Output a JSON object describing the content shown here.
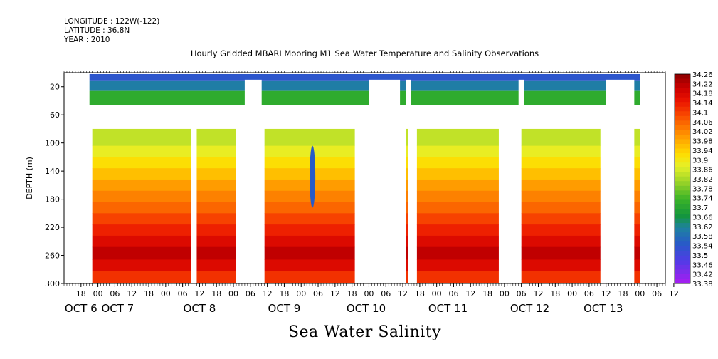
{
  "header": {
    "longitude": "LONGITUDE : 122W(-122)",
    "latitude": "LATITUDE : 36.8N",
    "year": "YEAR : 2010"
  },
  "chart_data": {
    "type": "heatmap",
    "title": "Hourly Gridded MBARI Mooring M1 Sea Water Temperature and Salinity Observations",
    "subtitle": "Sea Water Salinity",
    "ylabel": "DEPTH (m)",
    "x_range_hours": [
      -6,
      207
    ],
    "y_range": [
      0,
      300
    ],
    "y_inverted": true,
    "y_ticks": [
      20,
      60,
      100,
      140,
      180,
      220,
      260,
      300
    ],
    "x_hour_ticks": [
      "18",
      "00",
      "06",
      "12",
      "18",
      "00",
      "06",
      "12",
      "18",
      "00",
      "06",
      "12",
      "18",
      "00",
      "06",
      "12",
      "18",
      "00",
      "06",
      "12",
      "18",
      "00",
      "06",
      "12",
      "18",
      "00",
      "06",
      "12",
      "18",
      "00",
      "06",
      "12",
      "18",
      "00",
      "06",
      "12"
    ],
    "x_date_labels": [
      {
        "label": "OCT  6",
        "hour": 0
      },
      {
        "label": "OCT  7",
        "hour": 13
      },
      {
        "label": "OCT  8",
        "hour": 42
      },
      {
        "label": "OCT  9",
        "hour": 72
      },
      {
        "label": "OCT 10",
        "hour": 101
      },
      {
        "label": "OCT 11",
        "hour": 130
      },
      {
        "label": "OCT 12",
        "hour": 159
      },
      {
        "label": "OCT 13",
        "hour": 185
      }
    ],
    "colorbar": {
      "levels": [
        34.26,
        34.24,
        34.22,
        34.2,
        34.18,
        34.16,
        34.14,
        34.12,
        34.1,
        34.08,
        34.06,
        34.04,
        34.02,
        34.0,
        33.98,
        33.96,
        33.94,
        33.92,
        33.9,
        33.88,
        33.86,
        33.84,
        33.82,
        33.8,
        33.78,
        33.76,
        33.74,
        33.72,
        33.7,
        33.68,
        33.66,
        33.64,
        33.62,
        33.6,
        33.58,
        33.56,
        33.54,
        33.52,
        33.5,
        33.48,
        33.46,
        33.44,
        33.42,
        33.4,
        33.38
      ],
      "labels": [
        "34.26",
        "34.22",
        "34.18",
        "34.14",
        "34.1",
        "34.06",
        "34.02",
        "33.98",
        "33.94",
        "33.9",
        "33.86",
        "33.82",
        "33.78",
        "33.74",
        "33.7",
        "33.66",
        "33.62",
        "33.58",
        "33.54",
        "33.5",
        "33.46",
        "33.42",
        "33.38"
      ]
    },
    "depth_bands": [
      {
        "top": 2,
        "bottom": 12,
        "value": 33.53
      },
      {
        "top": 12,
        "bottom": 26,
        "value": 33.6
      },
      {
        "top": 26,
        "bottom": 46,
        "value": 33.71
      },
      {
        "top": 80,
        "bottom": 104,
        "value": 33.84
      },
      {
        "top": 104,
        "bottom": 120,
        "value": 33.88
      },
      {
        "top": 120,
        "bottom": 136,
        "value": 33.92
      },
      {
        "top": 136,
        "bottom": 152,
        "value": 33.96
      },
      {
        "top": 152,
        "bottom": 168,
        "value": 34.0
      },
      {
        "top": 168,
        "bottom": 184,
        "value": 34.03
      },
      {
        "top": 184,
        "bottom": 200,
        "value": 34.06
      },
      {
        "top": 200,
        "bottom": 216,
        "value": 34.1
      },
      {
        "top": 216,
        "bottom": 232,
        "value": 34.14
      },
      {
        "top": 232,
        "bottom": 248,
        "value": 34.18
      },
      {
        "top": 248,
        "bottom": 266,
        "value": 34.22
      },
      {
        "top": 266,
        "bottom": 282,
        "value": 34.18
      },
      {
        "top": 282,
        "bottom": 300,
        "value": 34.12
      }
    ],
    "data_segments": [
      {
        "start": 4,
        "end": 39,
        "bottom": 300
      },
      {
        "start": 41,
        "end": 55,
        "bottom": 300
      },
      {
        "start": 65,
        "end": 97,
        "bottom": 300
      },
      {
        "start": 115,
        "end": 116,
        "bottom": 300
      },
      {
        "start": 119,
        "end": 148,
        "bottom": 300
      },
      {
        "start": 156,
        "end": 184,
        "bottom": 300
      },
      {
        "start": 196,
        "end": 198,
        "bottom": 300
      }
    ],
    "fresh_intrusion": {
      "hour": 82,
      "depth_top": 104,
      "depth_bottom": 192,
      "value": 33.54
    }
  }
}
